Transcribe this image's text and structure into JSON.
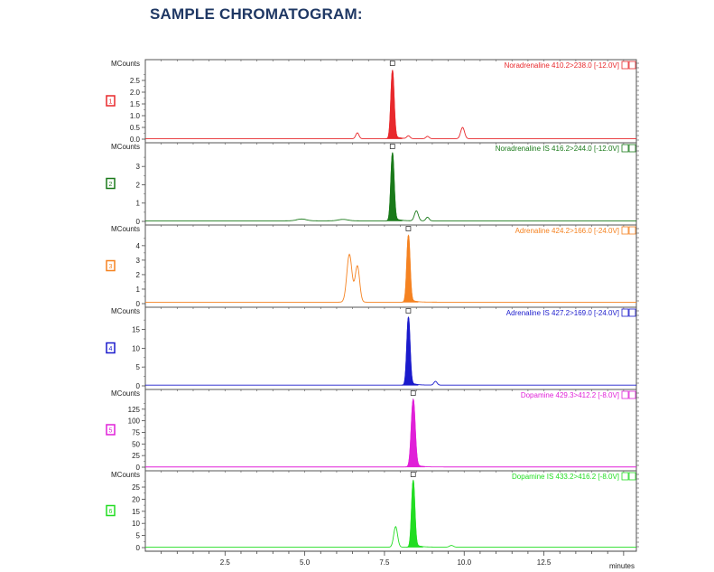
{
  "heading": "SAMPLE CHROMATOGRAM:",
  "x_axis": {
    "label": "minutes",
    "range": [
      0,
      15.4
    ],
    "ticks": [
      2.5,
      5.0,
      7.5,
      10.0,
      12.5
    ],
    "tick_labels": [
      "2.5",
      "5.0",
      "7.5",
      "10.0",
      "12.5"
    ]
  },
  "chart_data": [
    {
      "type": "line",
      "index": "1",
      "title": "Noradrenaline 410.2>238.0 [-12.0V]",
      "ylabel": "MCounts",
      "color": "#e8292c",
      "ylim": [
        0,
        3.0
      ],
      "yticks": [
        0.0,
        0.5,
        1.0,
        1.5,
        2.0,
        2.5
      ],
      "ytick_labels": [
        "0.0",
        "0.5",
        "1.0",
        "1.5",
        "2.0",
        "2.5"
      ],
      "baseline": 0.02,
      "filled_peak": {
        "rt": 7.75,
        "height": 2.9,
        "sigma": 0.05
      },
      "other_peaks": [
        {
          "rt": 6.65,
          "height": 0.25,
          "sigma": 0.05
        },
        {
          "rt": 8.25,
          "height": 0.12,
          "sigma": 0.05
        },
        {
          "rt": 8.85,
          "height": 0.1,
          "sigma": 0.05
        },
        {
          "rt": 9.95,
          "height": 0.48,
          "sigma": 0.06
        }
      ]
    },
    {
      "type": "line",
      "index": "2",
      "title": "Noradrenaline IS 416.2>244.0 [-12.0V]",
      "ylabel": "MCounts",
      "color": "#1a7a1a",
      "ylim": [
        0,
        3.8
      ],
      "yticks": [
        0,
        1,
        2,
        3
      ],
      "ytick_labels": [
        "0",
        "1",
        "2",
        "3"
      ],
      "baseline": 0.03,
      "filled_peak": {
        "rt": 7.75,
        "height": 3.7,
        "sigma": 0.05
      },
      "other_peaks": [
        {
          "rt": 4.9,
          "height": 0.1,
          "sigma": 0.15
        },
        {
          "rt": 6.2,
          "height": 0.08,
          "sigma": 0.15
        },
        {
          "rt": 8.5,
          "height": 0.55,
          "sigma": 0.06
        },
        {
          "rt": 8.85,
          "height": 0.2,
          "sigma": 0.05
        }
      ]
    },
    {
      "type": "line",
      "index": "3",
      "title": "Adrenaline 424.2>166.0 [-24.0V]",
      "ylabel": "MCounts",
      "color": "#f58220",
      "ylim": [
        0,
        4.8
      ],
      "yticks": [
        0,
        1,
        2,
        3,
        4
      ],
      "ytick_labels": [
        "0",
        "1",
        "2",
        "3",
        "4"
      ],
      "baseline": 0.1,
      "filled_peak": {
        "rt": 8.25,
        "height": 4.6,
        "sigma": 0.05
      },
      "other_peaks": [
        {
          "rt": 6.4,
          "height": 3.3,
          "sigma": 0.08
        },
        {
          "rt": 6.65,
          "height": 2.5,
          "sigma": 0.07
        }
      ]
    },
    {
      "type": "line",
      "index": "4",
      "title": "Adrenaline IS 427.2>169.0 [-24.0V]",
      "ylabel": "MCounts",
      "color": "#1a1acc",
      "ylim": [
        0,
        18.5
      ],
      "yticks": [
        0,
        5,
        10,
        15
      ],
      "ytick_labels": [
        "0",
        "5",
        "10",
        "15"
      ],
      "baseline": 0.2,
      "filled_peak": {
        "rt": 8.25,
        "height": 18,
        "sigma": 0.05
      },
      "other_peaks": [
        {
          "rt": 9.1,
          "height": 1.0,
          "sigma": 0.05
        }
      ]
    },
    {
      "type": "line",
      "index": "5",
      "title": "Dopamine 429.3>412.2 [-8.0V]",
      "ylabel": "MCounts",
      "color": "#e020d8",
      "ylim": [
        0,
        148
      ],
      "yticks": [
        0,
        25,
        50,
        75,
        100,
        125
      ],
      "ytick_labels": [
        "0",
        "25",
        "50",
        "75",
        "100",
        "125"
      ],
      "baseline": 0.5,
      "filled_peak": {
        "rt": 8.4,
        "height": 145,
        "sigma": 0.06
      },
      "other_peaks": []
    },
    {
      "type": "line",
      "index": "6",
      "title": "Dopamine IS 433.2>416.2 [-8.0V]",
      "ylabel": "MCounts",
      "color": "#22dd22",
      "ylim": [
        0,
        28
      ],
      "yticks": [
        0,
        5,
        10,
        15,
        20,
        25
      ],
      "ytick_labels": [
        "0",
        "5",
        "10",
        "15",
        "20",
        "25"
      ],
      "baseline": 0.2,
      "filled_peak": {
        "rt": 8.4,
        "height": 27.5,
        "sigma": 0.05
      },
      "other_peaks": [
        {
          "rt": 7.85,
          "height": 8.5,
          "sigma": 0.06
        },
        {
          "rt": 9.6,
          "height": 0.7,
          "sigma": 0.06
        }
      ]
    }
  ]
}
